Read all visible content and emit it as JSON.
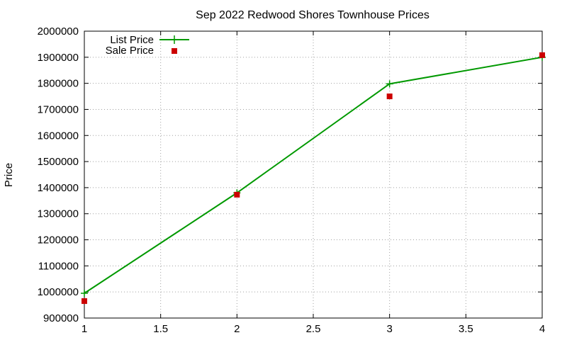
{
  "chart_data": {
    "type": "line",
    "title": "Sep 2022 Redwood Shores Townhouse Prices",
    "xlabel": "",
    "ylabel": "Price",
    "xlim": [
      1,
      4
    ],
    "ylim": [
      900000,
      2000000
    ],
    "x_ticks": [
      "1",
      "1.5",
      "2",
      "2.5",
      "3",
      "3.5",
      "4"
    ],
    "x_tick_values": [
      1,
      1.5,
      2,
      2.5,
      3,
      3.5,
      4
    ],
    "y_ticks": [
      "900000",
      "1000000",
      "1100000",
      "1200000",
      "1300000",
      "1400000",
      "1500000",
      "1600000",
      "1700000",
      "1800000",
      "1900000",
      "2000000"
    ],
    "y_tick_values": [
      900000,
      1000000,
      1100000,
      1200000,
      1300000,
      1400000,
      1500000,
      1600000,
      1700000,
      1800000,
      1900000,
      2000000
    ],
    "grid": true,
    "legend_position": "top-left",
    "series": [
      {
        "name": "List Price",
        "style": "line-with-plus-markers",
        "color": "#009900",
        "x": [
          1,
          2,
          3,
          4
        ],
        "y": [
          995000,
          1380000,
          1798000,
          1900000
        ]
      },
      {
        "name": "Sale Price",
        "style": "square-markers",
        "color": "#cc0000",
        "x": [
          1,
          2,
          3,
          4
        ],
        "y": [
          965000,
          1373000,
          1750000,
          1908000
        ]
      }
    ]
  }
}
